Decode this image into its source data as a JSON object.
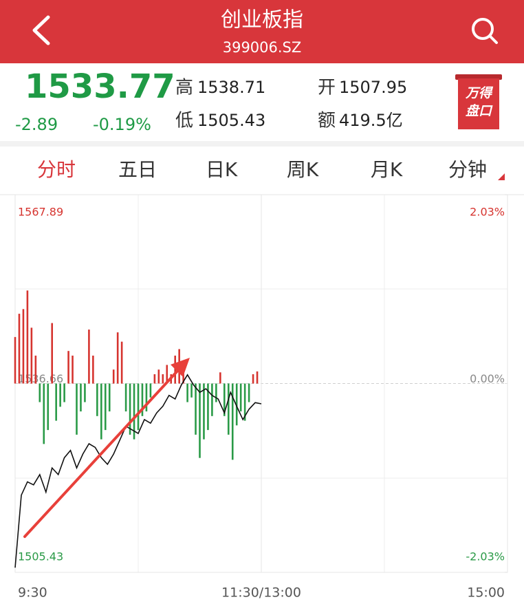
{
  "header": {
    "title": "创业板指",
    "code": "399006.SZ"
  },
  "quote": {
    "price": "1533.77",
    "change": "-2.89",
    "change_pct": "-0.19%",
    "high_label": "高",
    "high": "1538.71",
    "open_label": "开",
    "open": "1507.95",
    "low_label": "低",
    "low": "1505.43",
    "amount_label": "额",
    "amount": "419.5亿"
  },
  "badge": {
    "line1": "万得",
    "line2": "盘口"
  },
  "tabs": [
    "分时",
    "五日",
    "日K",
    "周K",
    "月K",
    "分钟"
  ],
  "chart_data": {
    "type": "line",
    "xlim": [
      0,
      240
    ],
    "xticks": [
      {
        "value": 0,
        "label": "9:30"
      },
      {
        "value": 120,
        "label": "11:30/13:00"
      },
      {
        "value": 240,
        "label": "15:00"
      }
    ],
    "ylim": [
      1505.43,
      1567.89
    ],
    "yticks": [
      1505.43,
      1536.66,
      1567.89
    ],
    "y2lim": [
      -2.03,
      2.03
    ],
    "y2ticks": [
      {
        "value": -2.03,
        "label": "-2.03%"
      },
      {
        "value": 0,
        "label": "0.00%"
      },
      {
        "value": 2.03,
        "label": "2.03%"
      }
    ],
    "grid": true,
    "series": [
      {
        "type": "line",
        "color": "#111111",
        "x": [
          0,
          3,
          6,
          9,
          12,
          15,
          18,
          21,
          24,
          27,
          30,
          33,
          36,
          39,
          42,
          45,
          48,
          51,
          54,
          57,
          60,
          63,
          66,
          69,
          72,
          75,
          78,
          81,
          84,
          87,
          90,
          93,
          96,
          99,
          102,
          105,
          108,
          111,
          114,
          117,
          120
        ],
        "values": [
          1506.2,
          1518.2,
          1520.4,
          1519.9,
          1521.6,
          1518.7,
          1522.7,
          1521.6,
          1524.4,
          1525.6,
          1522.7,
          1525.0,
          1526.7,
          1526.1,
          1524.4,
          1523.3,
          1525.0,
          1527.3,
          1529.6,
          1529.0,
          1528.4,
          1530.7,
          1530.1,
          1531.8,
          1532.9,
          1534.7,
          1534.1,
          1536.4,
          1538.1,
          1536.4,
          1535.2,
          1535.8,
          1534.7,
          1534.1,
          1531.8,
          1535.2,
          1532.9,
          1530.7,
          1532.4,
          1533.5,
          1533.3
        ]
      },
      {
        "type": "bar",
        "axis": "y2",
        "color": "#d6342f",
        "negative_color": "#2a9a47",
        "x": [
          0,
          2,
          4,
          6,
          8,
          10,
          12,
          14,
          16,
          18,
          20,
          22,
          24,
          26,
          28,
          30,
          32,
          34,
          36,
          38,
          40,
          42,
          44,
          46,
          48,
          50,
          52,
          54,
          56,
          58,
          60,
          62,
          64,
          66,
          68,
          70,
          72,
          74,
          76,
          78,
          80,
          82,
          84,
          86,
          88,
          90,
          92,
          94,
          96,
          98,
          100,
          102,
          104,
          106,
          108,
          110,
          112,
          114,
          116,
          118
        ],
        "values": [
          0.5,
          0.75,
          0.8,
          1.0,
          0.6,
          0.3,
          -0.2,
          -0.65,
          -0.5,
          0.65,
          -0.4,
          -0.25,
          -0.2,
          0.35,
          0.3,
          -0.55,
          -0.3,
          -0.2,
          0.58,
          0.3,
          -0.35,
          -0.6,
          -0.5,
          -0.3,
          0.15,
          0.55,
          0.45,
          -0.3,
          -0.55,
          -0.6,
          -0.5,
          -0.35,
          -0.3,
          -0.15,
          0.1,
          0.15,
          0.1,
          0.2,
          0.1,
          0.3,
          0.37,
          0.2,
          -0.2,
          -0.15,
          -0.55,
          -0.8,
          -0.6,
          -0.5,
          -0.35,
          -0.2,
          0.12,
          -0.35,
          -0.55,
          -0.82,
          -0.45,
          -0.3,
          -0.4,
          -0.2,
          0.1,
          0.13
        ]
      }
    ]
  }
}
